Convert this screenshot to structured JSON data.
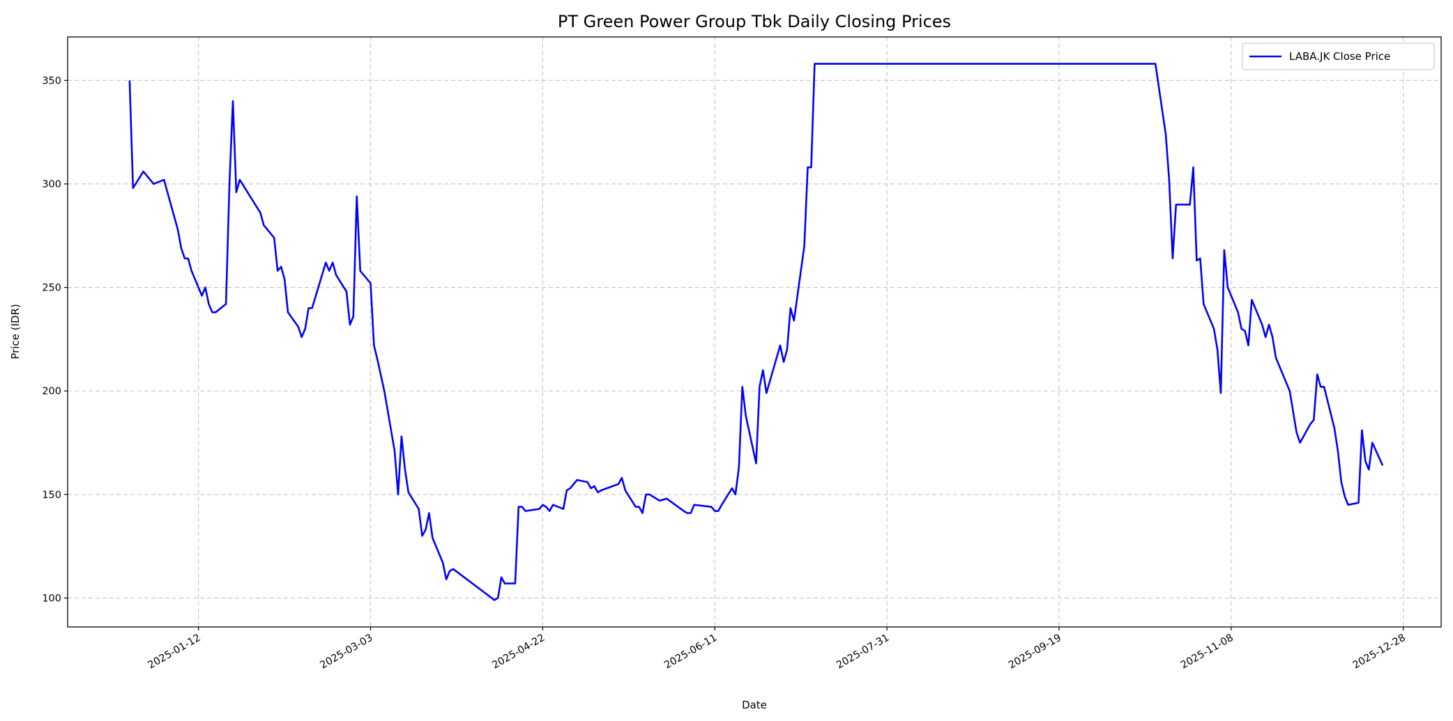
{
  "chart_data": {
    "type": "line",
    "title": "PT Green Power Group Tbk Daily Closing Prices",
    "xlabel": "Date",
    "ylabel": "Price (IDR)",
    "xlim": [
      "2024-12-05",
      "2026-01-08"
    ],
    "ylim": [
      86,
      371
    ],
    "grid": true,
    "legend_position": "top-right",
    "x_ticks": [
      "2025-01-12",
      "2025-03-03",
      "2025-04-22",
      "2025-06-11",
      "2025-07-31",
      "2025-09-19",
      "2025-11-08",
      "2025-12-28"
    ],
    "y_ticks": [
      100,
      150,
      200,
      250,
      300,
      350
    ],
    "series": [
      {
        "name": "LABA.JK Close Price",
        "color": "#0000ff",
        "x": [
          "2024-12-23",
          "2024-12-24",
          "2024-12-27",
          "2024-12-30",
          "2025-01-02",
          "2025-01-06",
          "2025-01-07",
          "2025-01-08",
          "2025-01-09",
          "2025-01-10",
          "2025-01-13",
          "2025-01-14",
          "2025-01-15",
          "2025-01-16",
          "2025-01-17",
          "2025-01-20",
          "2025-01-21",
          "2025-01-22",
          "2025-01-23",
          "2025-01-24",
          "2025-01-30",
          "2025-01-31",
          "2025-02-03",
          "2025-02-04",
          "2025-02-05",
          "2025-02-06",
          "2025-02-07",
          "2025-02-10",
          "2025-02-11",
          "2025-02-12",
          "2025-02-13",
          "2025-02-14",
          "2025-02-18",
          "2025-02-19",
          "2025-02-20",
          "2025-02-21",
          "2025-02-24",
          "2025-02-25",
          "2025-02-26",
          "2025-02-27",
          "2025-02-28",
          "2025-03-03",
          "2025-03-04",
          "2025-03-05",
          "2025-03-07",
          "2025-03-10",
          "2025-03-11",
          "2025-03-12",
          "2025-03-13",
          "2025-03-14",
          "2025-03-17",
          "2025-03-18",
          "2025-03-19",
          "2025-03-20",
          "2025-03-21",
          "2025-03-24",
          "2025-03-25",
          "2025-03-26",
          "2025-03-27",
          "2025-04-08",
          "2025-04-09",
          "2025-04-10",
          "2025-04-11",
          "2025-04-14",
          "2025-04-15",
          "2025-04-16",
          "2025-04-17",
          "2025-04-21",
          "2025-04-22",
          "2025-04-23",
          "2025-04-24",
          "2025-04-25",
          "2025-04-28",
          "2025-04-29",
          "2025-04-30",
          "2025-05-02",
          "2025-05-05",
          "2025-05-06",
          "2025-05-07",
          "2025-05-08",
          "2025-05-09",
          "2025-05-14",
          "2025-05-15",
          "2025-05-16",
          "2025-05-19",
          "2025-05-20",
          "2025-05-21",
          "2025-05-22",
          "2025-05-23",
          "2025-05-26",
          "2025-05-28",
          "2025-06-02",
          "2025-06-03",
          "2025-06-04",
          "2025-06-05",
          "2025-06-10",
          "2025-06-11",
          "2025-06-12",
          "2025-06-13",
          "2025-06-16",
          "2025-06-17",
          "2025-06-18",
          "2025-06-19",
          "2025-06-20",
          "2025-06-23",
          "2025-06-24",
          "2025-06-25",
          "2025-06-26",
          "2025-06-30",
          "2025-07-01",
          "2025-07-02",
          "2025-07-03",
          "2025-07-04",
          "2025-07-07",
          "2025-07-08",
          "2025-07-09",
          "2025-07-10",
          "2025-10-17",
          "2025-10-20",
          "2025-10-21",
          "2025-10-22",
          "2025-10-23",
          "2025-10-27",
          "2025-10-28",
          "2025-10-29",
          "2025-10-30",
          "2025-10-31",
          "2025-11-03",
          "2025-11-04",
          "2025-11-05",
          "2025-11-06",
          "2025-11-07",
          "2025-11-10",
          "2025-11-11",
          "2025-11-12",
          "2025-11-13",
          "2025-11-14",
          "2025-11-17",
          "2025-11-18",
          "2025-11-19",
          "2025-11-20",
          "2025-11-21",
          "2025-11-25",
          "2025-11-27",
          "2025-11-28",
          "2025-12-01",
          "2025-12-02",
          "2025-12-03",
          "2025-12-04",
          "2025-12-05",
          "2025-12-08",
          "2025-12-09",
          "2025-12-10",
          "2025-12-11",
          "2025-12-12",
          "2025-12-15",
          "2025-12-16",
          "2025-12-17",
          "2025-12-18",
          "2025-12-19",
          "2025-12-22"
        ],
        "values": [
          350,
          298,
          306,
          300,
          302,
          278,
          269,
          264,
          264,
          258,
          246,
          250,
          242,
          238,
          238,
          242,
          300,
          340,
          296,
          302,
          286,
          280,
          274,
          258,
          260,
          254,
          238,
          231,
          226,
          230,
          240,
          240,
          262,
          258,
          262,
          256,
          248,
          232,
          236,
          294,
          258,
          252,
          222,
          215,
          200,
          171,
          150,
          178,
          162,
          151,
          143,
          130,
          133,
          141,
          129,
          117,
          109,
          113,
          114,
          99,
          100,
          110,
          107,
          107,
          144,
          144,
          142,
          143,
          145,
          144,
          142,
          145,
          143,
          152,
          153,
          157,
          156,
          153,
          154,
          151,
          152,
          155,
          158,
          152,
          144,
          144,
          141,
          150,
          150,
          147,
          148,
          142,
          141,
          141,
          145,
          144,
          142,
          142,
          145,
          153,
          150,
          163,
          202,
          188,
          165,
          202,
          210,
          199,
          222,
          214,
          220,
          240,
          234,
          270,
          308,
          308,
          358,
          358,
          324,
          302,
          264,
          290,
          290,
          308,
          263,
          264,
          242,
          230,
          220,
          199,
          268,
          250,
          238,
          230,
          229,
          222,
          244,
          232,
          226,
          232,
          226,
          216,
          200,
          180,
          175,
          184,
          186,
          208,
          202,
          202,
          182,
          171,
          156,
          149,
          145,
          146,
          181,
          166,
          162,
          175,
          164
        ]
      }
    ]
  }
}
